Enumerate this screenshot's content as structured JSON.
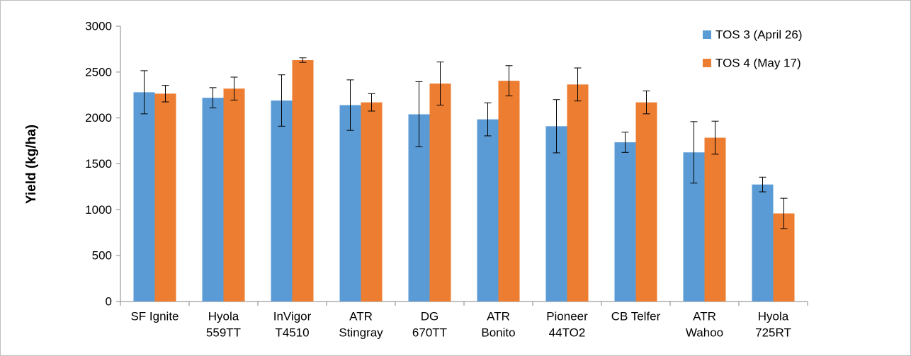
{
  "chart_data": {
    "type": "bar",
    "y_label": "Yield (kg/ha)",
    "categories": [
      [
        "SF Ignite"
      ],
      [
        "Hyola",
        "559TT"
      ],
      [
        "InVigor",
        "T4510"
      ],
      [
        "ATR",
        "Stingray"
      ],
      [
        "DG",
        "670TT"
      ],
      [
        "ATR",
        "Bonito"
      ],
      [
        "Pioneer",
        "44TO2"
      ],
      [
        "CB Telfer"
      ],
      [
        "ATR",
        "Wahoo"
      ],
      [
        "Hyola",
        "725RT"
      ]
    ],
    "series": [
      {
        "name": "TOS 3 (April 26)",
        "color": "#5b9bd5",
        "values": [
          2280,
          2220,
          2190,
          2140,
          2040,
          1985,
          1910,
          1735,
          1625,
          1275
        ],
        "errors": [
          235,
          110,
          280,
          275,
          355,
          180,
          290,
          110,
          335,
          80
        ]
      },
      {
        "name": "TOS 4 (May 17)",
        "color": "#ed7d31",
        "values": [
          2265,
          2320,
          2630,
          2170,
          2375,
          2405,
          2365,
          2170,
          1785,
          960
        ],
        "errors": [
          90,
          125,
          25,
          95,
          235,
          165,
          180,
          125,
          180,
          165
        ]
      }
    ],
    "ylim": [
      0,
      3000
    ],
    "yticks": [
      0,
      500,
      1000,
      1500,
      2000,
      2500,
      3000
    ],
    "legend": "top-right"
  }
}
